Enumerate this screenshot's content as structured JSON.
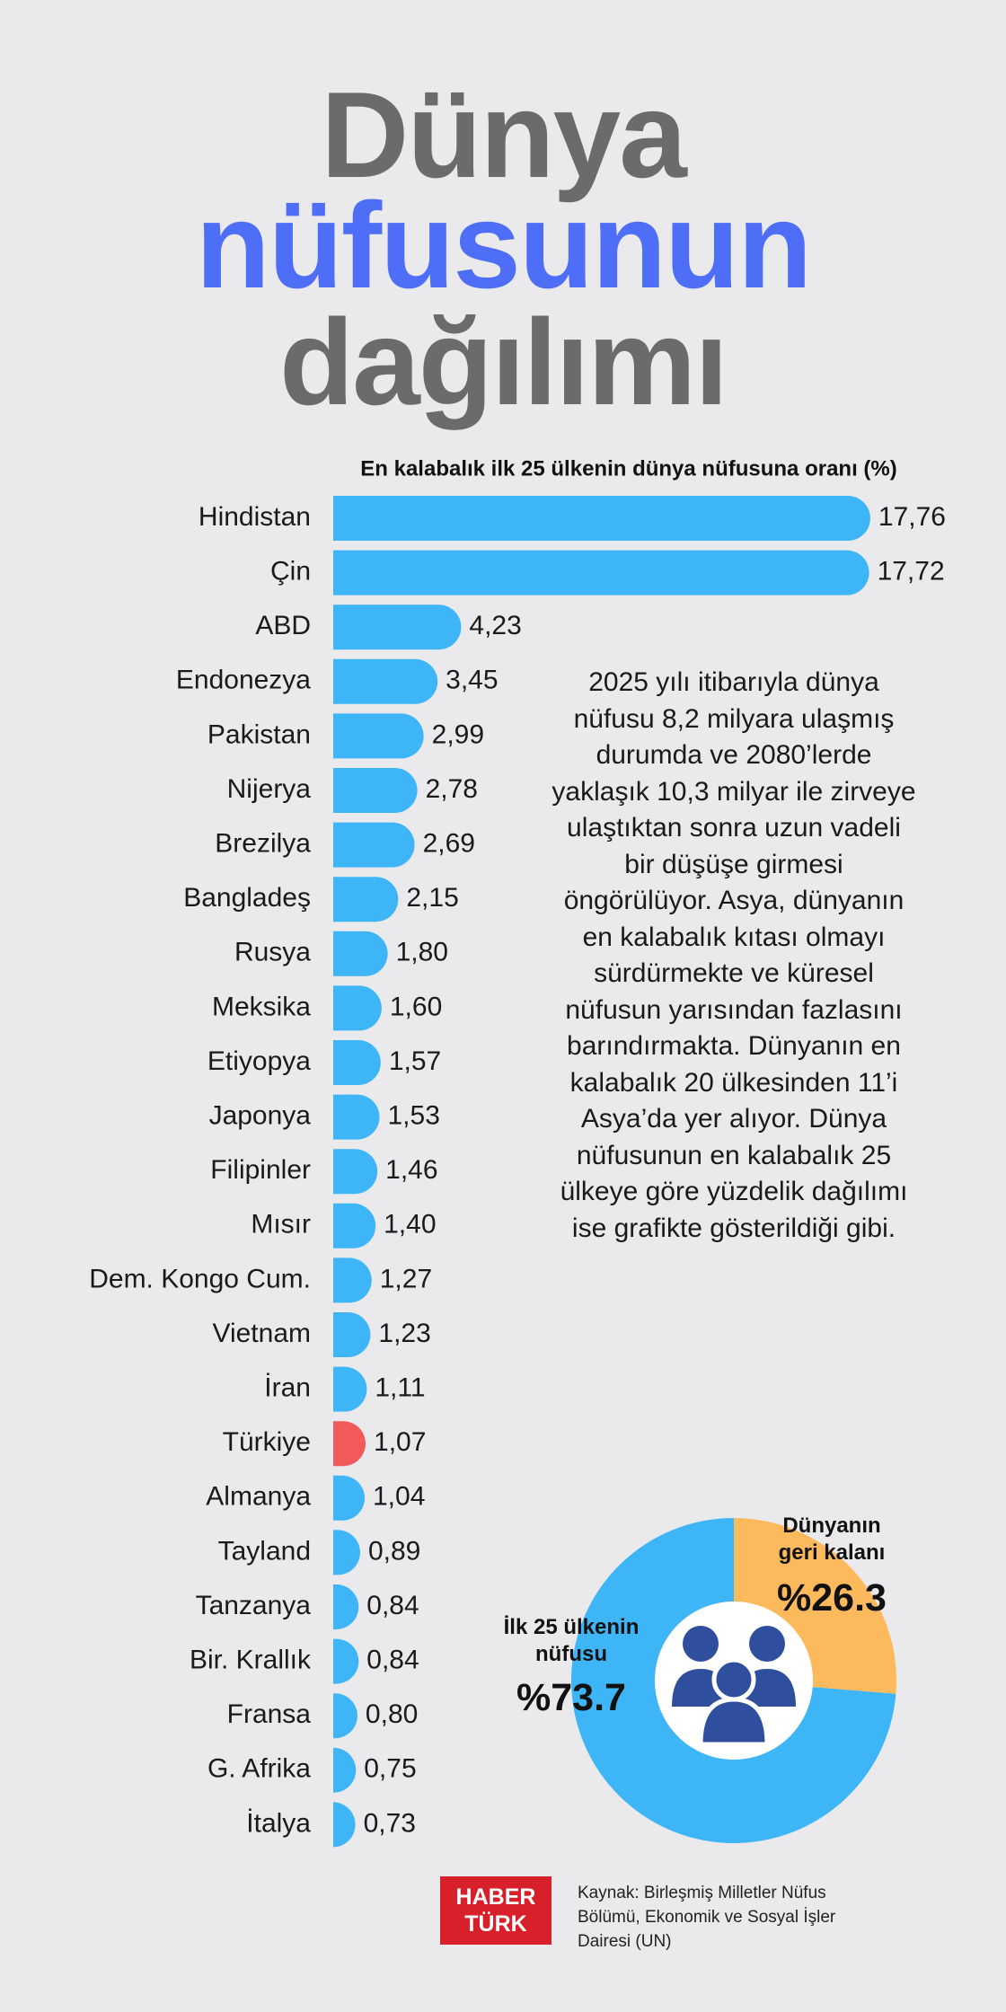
{
  "title_lines": [
    "Dünya",
    "nüfusunun",
    "dağılımı"
  ],
  "description": "2025 yılı itibarıyla dünya nüfusu 8,2 milyara ulaşmış durumda ve 2080’lerde yaklaşık 10,3 milyar ile zirveye ulaştıktan sonra uzun vadeli bir düşüşe girmesi öngörülüyor. Asya, dünyanın en kalabalık kıtası olmayı sürdürmekte ve küresel nüfusun yarısından fazlasını barındırmakta. Dünyanın en kalabalık 20 ülkesinden 11’i Asya’da yer alıyor. Dünya nüfusunun en kalabalık 25 ülkeye göre yüzdelik dağılımı ise grafikte gösterildiği gibi.",
  "logo": [
    "HABER",
    "TÜRK"
  ],
  "source": "Kaynak: Birleşmiş Milletler Nüfus Bölümü, Ekonomik ve Sosyal İşler Dairesi (UN)",
  "chart_data": [
    {
      "type": "bar",
      "orientation": "horizontal",
      "subtitle": "En kalabalık ilk 25 ülkenin dünya nüfusuna oranı (%)",
      "categories": [
        "Hindistan",
        "Çin",
        "ABD",
        "Endonezya",
        "Pakistan",
        "Nijerya",
        "Brezilya",
        "Bangladeş",
        "Rusya",
        "Meksika",
        "Etiyopya",
        "Japonya",
        "Filipinler",
        "Mısır",
        "Dem. Kongo Cum.",
        "Vietnam",
        "İran",
        "Türkiye",
        "Almanya",
        "Tayland",
        "Tanzanya",
        "Bir. Krallık",
        "Fransa",
        "G. Afrika",
        "İtalya"
      ],
      "values": [
        17.76,
        17.72,
        4.23,
        3.45,
        2.99,
        2.78,
        2.69,
        2.15,
        1.8,
        1.6,
        1.57,
        1.53,
        1.46,
        1.4,
        1.27,
        1.23,
        1.11,
        1.07,
        1.04,
        0.89,
        0.84,
        0.84,
        0.8,
        0.75,
        0.73
      ],
      "value_labels": [
        "17,76",
        "17,72",
        "4,23",
        "3,45",
        "2,99",
        "2,78",
        "2,69",
        "2,15",
        "1,80",
        "1,60",
        "1,57",
        "1,53",
        "1,46",
        "1,40",
        "1,27",
        "1,23",
        "1,11",
        "1,07",
        "1,04",
        "0,89",
        "0,84",
        "0,84",
        "0,80",
        "0,75",
        "0,73"
      ],
      "colors": [
        "#3db5f7",
        "#3db5f7",
        "#3db5f7",
        "#3db5f7",
        "#3db5f7",
        "#3db5f7",
        "#3db5f7",
        "#3db5f7",
        "#3db5f7",
        "#3db5f7",
        "#3db5f7",
        "#3db5f7",
        "#3db5f7",
        "#3db5f7",
        "#3db5f7",
        "#3db5f7",
        "#3db5f7",
        "#f25a5a",
        "#3db5f7",
        "#3db5f7",
        "#3db5f7",
        "#3db5f7",
        "#3db5f7",
        "#3db5f7",
        "#3db5f7"
      ],
      "xlim": [
        0,
        18
      ]
    },
    {
      "type": "pie",
      "donut": true,
      "categories": [
        "İlk 25 ülkenin nüfusu",
        "Dünyanın geri kalanı"
      ],
      "values": [
        73.7,
        26.3
      ],
      "value_labels": [
        "%73.7",
        "%26.3"
      ],
      "colors": [
        "#3db5f7",
        "#fdba5c"
      ]
    }
  ]
}
